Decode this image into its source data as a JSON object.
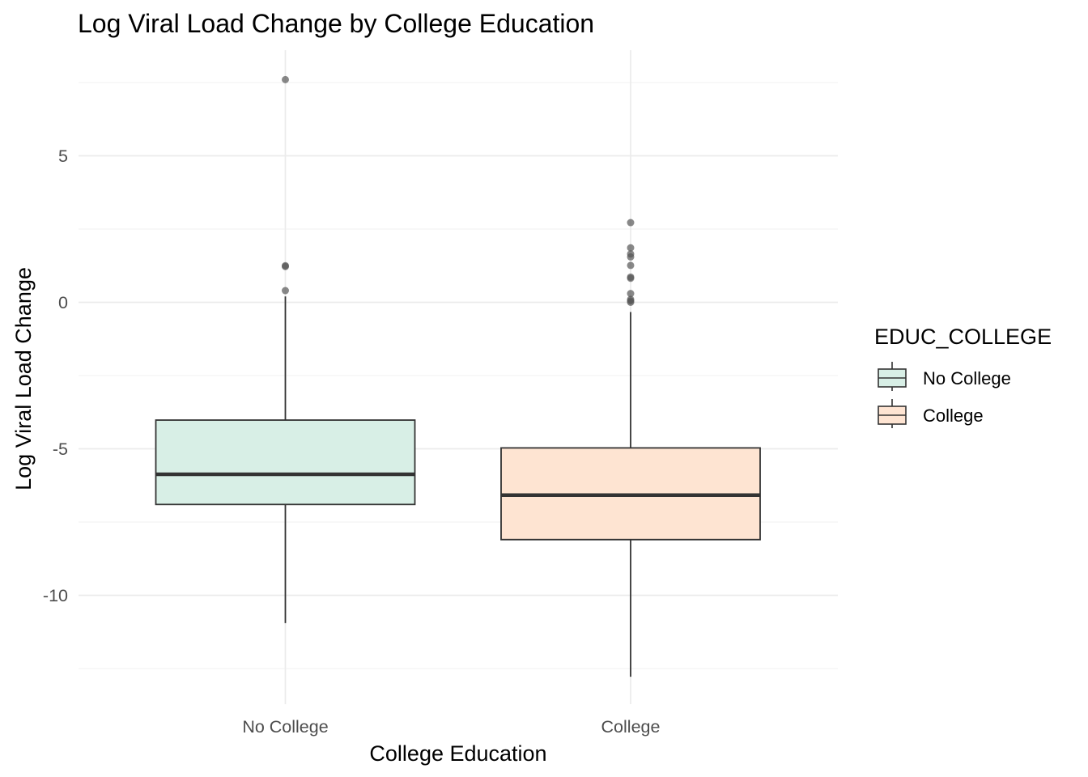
{
  "chart_data": {
    "type": "boxplot",
    "title": "Log Viral Load Change by College Education",
    "xlabel": "College Education",
    "ylabel": "Log Viral Load Change",
    "ylim": [
      -13.8,
      8.7
    ],
    "y_ticks": [
      -10,
      -5,
      0,
      5
    ],
    "y_tick_labels": [
      "-10",
      "-5",
      "0",
      "5"
    ],
    "grid": true,
    "legend": {
      "title": "EDUC_COLLEGE",
      "position": "right",
      "entries": [
        "No College",
        "College"
      ]
    },
    "categories": [
      "No College",
      "College"
    ],
    "boxes": [
      {
        "name": "No College",
        "color": "#d8efe6",
        "min": -10.95,
        "q1": -6.9,
        "median": -5.87,
        "q3": -4.02,
        "max": 0.2,
        "outliers": [
          7.6,
          1.25,
          1.22,
          0.4
        ]
      },
      {
        "name": "College",
        "color": "#fee4d2",
        "min": -12.78,
        "q1": -8.1,
        "median": -6.58,
        "q3": -4.97,
        "max": -0.33,
        "outliers": [
          2.72,
          1.86,
          1.65,
          1.55,
          1.26,
          0.86,
          0.82,
          0.3,
          0.1,
          0.05,
          0.0
        ]
      }
    ]
  },
  "colors": {
    "box_stroke": "#333333",
    "outlier": "#555555"
  }
}
